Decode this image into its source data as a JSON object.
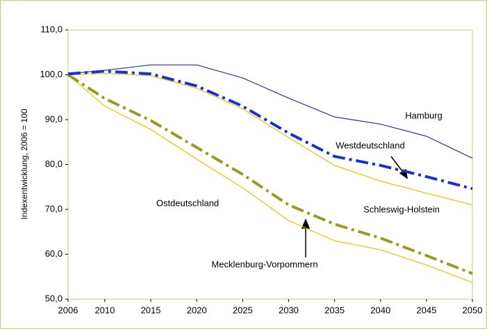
{
  "chart_data": {
    "type": "line",
    "y_label": "Indexentwicklung, 2006 = 100",
    "x": [
      2006,
      2010,
      2015,
      2020,
      2025,
      2030,
      2035,
      2040,
      2045,
      2050
    ],
    "series": [
      {
        "name": "Hamburg",
        "color": "#1f3c88",
        "linestyle": "solid",
        "values": [
          100.2,
          101,
          102.2,
          102.2,
          99.3,
          94.8,
          90.6,
          89,
          86.3,
          81.4
        ]
      },
      {
        "name": "Westdeutschland",
        "color": "#1a2fd6",
        "linestyle": "dashdot",
        "values": [
          100.2,
          100.8,
          100.2,
          97.5,
          93,
          87,
          81.8,
          79.8,
          77.3,
          74.6
        ]
      },
      {
        "name": "Schleswig-Holstein",
        "color": "#e8c000",
        "linestyle": "solid",
        "values": [
          100,
          100.3,
          99.8,
          97,
          92.4,
          86,
          79.8,
          76.3,
          73.6,
          71
        ]
      },
      {
        "name": "Ostdeutschland",
        "color": "#9a9a22",
        "linestyle": "dashdot",
        "values": [
          100,
          94.7,
          89.8,
          83.8,
          77.8,
          71,
          66.7,
          63.6,
          59.7,
          55.7
        ]
      },
      {
        "name": "Mecklenburg-Vorpommern",
        "color": "#e8c000",
        "linestyle": "solid",
        "values": [
          100,
          93,
          87.8,
          81.2,
          74.8,
          67.5,
          63,
          61,
          57.6,
          53.7
        ]
      }
    ],
    "xlim": [
      2006,
      2050
    ],
    "xticks": [
      2006,
      2010,
      2015,
      2020,
      2025,
      2030,
      2035,
      2040,
      2045,
      2050
    ],
    "ylim": [
      50,
      110
    ],
    "yticks": [
      {
        "value": 50,
        "label": "50,0"
      },
      {
        "value": 60,
        "label": "60,0"
      },
      {
        "value": 70,
        "label": "70,0"
      },
      {
        "value": 80,
        "label": "80,0"
      },
      {
        "value": 90,
        "label": "90,0"
      },
      {
        "value": 100,
        "label": "100,0"
      },
      {
        "value": 110,
        "label": "110,0"
      }
    ]
  }
}
